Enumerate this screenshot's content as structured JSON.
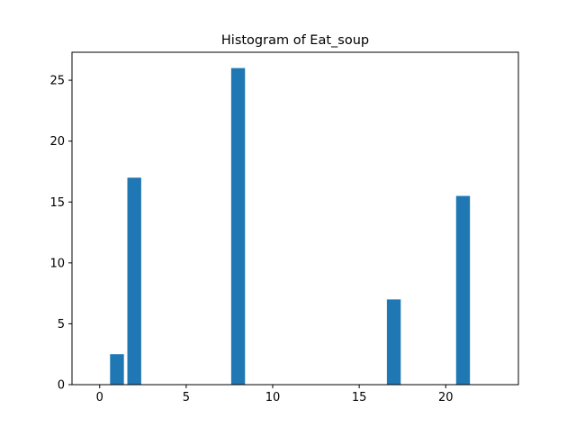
{
  "chart_data": {
    "type": "bar",
    "title": "Histogram of Eat_soup",
    "xlabel": "",
    "ylabel": "",
    "x": [
      1,
      2,
      8,
      17,
      21
    ],
    "values": [
      2.5,
      17,
      26,
      7,
      15.5
    ],
    "bar_width": 0.8,
    "xlim": [
      -1.6,
      24.2
    ],
    "ylim": [
      0,
      27.3
    ],
    "xticks": [
      0,
      5,
      10,
      15,
      20
    ],
    "yticks": [
      0,
      5,
      10,
      15,
      20,
      25
    ],
    "grid": false,
    "legend": "none",
    "bar_color": "#1f77b4"
  }
}
